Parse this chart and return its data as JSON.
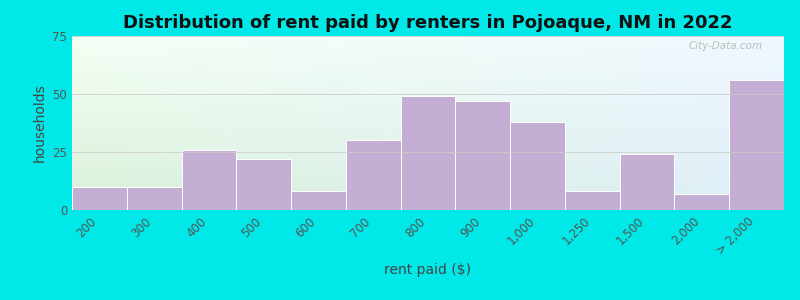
{
  "title": "Distribution of rent paid by renters in Pojoaque, NM in 2022",
  "xlabel": "rent paid ($)",
  "ylabel": "households",
  "bar_color": "#c4aed4",
  "bar_edge_color": "#ffffff",
  "background_outer": "#00e8e8",
  "background_left": "#d8f0d8",
  "background_right": "#ddeef8",
  "tick_labels": [
    "200",
    "300",
    "400",
    "500",
    "600",
    "700",
    "800",
    "900",
    "1,000",
    "1,250",
    "1,500",
    "2,000",
    "> 2,000"
  ],
  "values": [
    10,
    10,
    26,
    22,
    8,
    30,
    49,
    47,
    38,
    8,
    24,
    7,
    56
  ],
  "bin_edges": [
    0,
    1,
    2,
    3,
    4,
    5,
    6,
    7,
    8,
    9,
    10,
    11,
    12,
    13
  ],
  "ylim": [
    0,
    75
  ],
  "yticks": [
    0,
    25,
    50,
    75
  ],
  "title_fontsize": 13,
  "axis_label_fontsize": 10,
  "tick_fontsize": 8.5
}
